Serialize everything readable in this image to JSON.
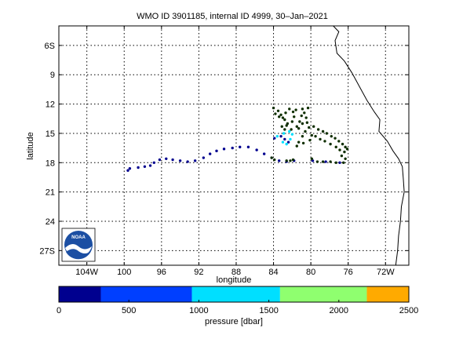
{
  "chart_data": {
    "type": "scatter",
    "title": "WMO ID 3901185, internal ID 4999, 30–Jan–2021",
    "xlabel": "longitude",
    "ylabel": "latitude",
    "xlim": [
      -107,
      -69.5
    ],
    "ylim": [
      -28.5,
      -4
    ],
    "xticks": [
      {
        "v": -104,
        "label": "104W"
      },
      {
        "v": -100,
        "label": "100"
      },
      {
        "v": -96,
        "label": "96"
      },
      {
        "v": -92,
        "label": "92"
      },
      {
        "v": -88,
        "label": "88"
      },
      {
        "v": -84,
        "label": "84"
      },
      {
        "v": -80,
        "label": "80"
      },
      {
        "v": -76,
        "label": "76"
      },
      {
        "v": -72,
        "label": "72W"
      }
    ],
    "yticks": [
      {
        "v": -6,
        "label": "6S"
      },
      {
        "v": -9,
        "label": "9"
      },
      {
        "v": -12,
        "label": "12"
      },
      {
        "v": -15,
        "label": "15"
      },
      {
        "v": -18,
        "label": "18"
      },
      {
        "v": -21,
        "label": "21"
      },
      {
        "v": -24,
        "label": "24"
      },
      {
        "v": -27,
        "label": "27S"
      }
    ],
    "grid": true,
    "coastline": [
      [
        -77.6,
        -4.0
      ],
      [
        -77.0,
        -4.6
      ],
      [
        -77.4,
        -5.5
      ],
      [
        -77.2,
        -6.8
      ],
      [
        -76.4,
        -7.6
      ],
      [
        -75.6,
        -8.8
      ],
      [
        -74.8,
        -10.2
      ],
      [
        -74.0,
        -11.6
      ],
      [
        -73.2,
        -12.8
      ],
      [
        -72.6,
        -13.6
      ],
      [
        -72.7,
        -14.8
      ],
      [
        -71.8,
        -15.8
      ],
      [
        -71.2,
        -16.8
      ],
      [
        -70.6,
        -17.6
      ],
      [
        -70.2,
        -18.4
      ],
      [
        -70.1,
        -19.6
      ],
      [
        -70.0,
        -21.0
      ],
      [
        -70.3,
        -22.5
      ],
      [
        -70.4,
        -24.0
      ],
      [
        -70.6,
        -25.5
      ],
      [
        -70.7,
        -27.0
      ],
      [
        -70.9,
        -28.5
      ]
    ],
    "series": [
      {
        "color": "#00008f",
        "points": [
          [
            -99.6,
            -18.8
          ],
          [
            -99.4,
            -18.6
          ],
          [
            -98.5,
            -18.5
          ],
          [
            -97.8,
            -18.4
          ],
          [
            -97.2,
            -18.3
          ],
          [
            -96.8,
            -18.0
          ],
          [
            -96.2,
            -17.7
          ],
          [
            -95.5,
            -17.6
          ],
          [
            -94.8,
            -17.7
          ],
          [
            -94.0,
            -17.8
          ],
          [
            -93.2,
            -17.9
          ],
          [
            -92.4,
            -17.8
          ],
          [
            -91.5,
            -17.5
          ],
          [
            -90.8,
            -17.1
          ],
          [
            -90.1,
            -16.8
          ],
          [
            -89.3,
            -16.6
          ],
          [
            -88.4,
            -16.5
          ],
          [
            -87.6,
            -16.4
          ],
          [
            -86.7,
            -16.4
          ],
          [
            -85.8,
            -16.7
          ],
          [
            -85.0,
            -17.1
          ],
          [
            -84.2,
            -17.5
          ],
          [
            -83.4,
            -17.8
          ],
          [
            -82.6,
            -17.9
          ],
          [
            -81.8,
            -17.8
          ],
          [
            -83.9,
            -15.5
          ],
          [
            -83.2,
            -15.3
          ],
          [
            -82.8,
            -15.6
          ],
          [
            -82.4,
            -15.9
          ],
          [
            -79.8,
            -17.8
          ],
          [
            -78.4,
            -17.9
          ],
          [
            -76.9,
            -18.0
          ]
        ]
      },
      {
        "color": "#00dfff",
        "points": [
          [
            -83.6,
            -15.3
          ],
          [
            -83.0,
            -15.9
          ],
          [
            -82.6,
            -16.1
          ],
          [
            -82.2,
            -15.6
          ],
          [
            -82.0,
            -15.1
          ],
          [
            -82.9,
            -15.0
          ],
          [
            -82.3,
            -14.8
          ]
        ]
      },
      {
        "color": "#0f2f00",
        "points": [
          [
            -84.0,
            -12.4
          ],
          [
            -83.5,
            -12.7
          ],
          [
            -83.2,
            -13.1
          ],
          [
            -82.8,
            -13.6
          ],
          [
            -82.5,
            -14.0
          ],
          [
            -82.0,
            -13.8
          ],
          [
            -81.8,
            -13.3
          ],
          [
            -81.9,
            -12.8
          ],
          [
            -82.3,
            -12.5
          ],
          [
            -82.7,
            -12.9
          ],
          [
            -83.0,
            -13.4
          ],
          [
            -82.6,
            -14.2
          ],
          [
            -82.1,
            -14.6
          ],
          [
            -81.5,
            -14.3
          ],
          [
            -81.2,
            -13.8
          ],
          [
            -81.0,
            -13.2
          ],
          [
            -80.7,
            -12.9
          ],
          [
            -80.5,
            -13.4
          ],
          [
            -80.9,
            -14.0
          ],
          [
            -81.3,
            -14.5
          ],
          [
            -80.6,
            -14.8
          ],
          [
            -80.2,
            -14.4
          ],
          [
            -80.4,
            -13.9
          ],
          [
            -81.6,
            -12.6
          ],
          [
            -80.9,
            -12.5
          ],
          [
            -80.3,
            -12.4
          ],
          [
            -83.8,
            -13.0
          ],
          [
            -83.4,
            -13.3
          ],
          [
            -83.1,
            -14.3
          ],
          [
            -82.8,
            -14.6
          ],
          [
            -79.7,
            -14.3
          ],
          [
            -79.2,
            -14.6
          ],
          [
            -78.7,
            -14.8
          ],
          [
            -78.3,
            -15.0
          ],
          [
            -77.8,
            -15.3
          ],
          [
            -77.4,
            -15.5
          ],
          [
            -77.0,
            -15.8
          ],
          [
            -76.6,
            -16.1
          ],
          [
            -76.3,
            -16.4
          ],
          [
            -76.1,
            -16.6
          ],
          [
            -76.4,
            -16.9
          ],
          [
            -76.9,
            -16.7
          ],
          [
            -77.3,
            -16.4
          ],
          [
            -77.9,
            -16.1
          ],
          [
            -78.5,
            -15.8
          ],
          [
            -79.0,
            -15.6
          ],
          [
            -79.5,
            -15.3
          ],
          [
            -79.9,
            -15.2
          ],
          [
            -80.1,
            -15.7
          ],
          [
            -76.7,
            -17.3
          ],
          [
            -76.3,
            -17.6
          ],
          [
            -76.5,
            -18.0
          ],
          [
            -77.3,
            -18.0
          ],
          [
            -77.9,
            -17.9
          ],
          [
            -78.7,
            -17.9
          ],
          [
            -79.3,
            -17.9
          ],
          [
            -79.9,
            -17.6
          ],
          [
            -83.9,
            -17.7
          ],
          [
            -84.2,
            -17.5
          ],
          [
            -82.2,
            -17.8
          ],
          [
            -81.9,
            -17.7
          ],
          [
            -82.6,
            -17.8
          ],
          [
            -80.8,
            -16.0
          ],
          [
            -81.3,
            -15.9
          ],
          [
            -81.5,
            -16.3
          ],
          [
            -80.9,
            -15.3
          ]
        ]
      }
    ],
    "colorbar": {
      "label": "pressure [dbar]",
      "min": 0,
      "max": 2500,
      "ticks": [
        0,
        500,
        1000,
        1500,
        2000,
        2500
      ],
      "segments": [
        {
          "from": 0,
          "to": 300,
          "color": "#00008f"
        },
        {
          "from": 300,
          "to": 950,
          "color": "#003fff"
        },
        {
          "from": 950,
          "to": 1580,
          "color": "#00dfff"
        },
        {
          "from": 1580,
          "to": 2200,
          "color": "#8fff6f"
        },
        {
          "from": 2200,
          "to": 2500,
          "color": "#ffaa00"
        }
      ]
    },
    "logo": {
      "text": "NOAA"
    }
  }
}
